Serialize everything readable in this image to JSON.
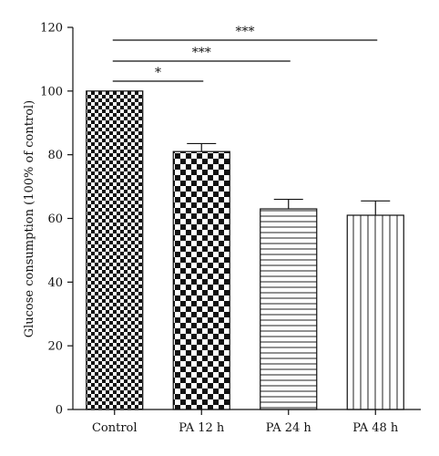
{
  "chart_data": {
    "type": "bar",
    "title": "",
    "xlabel": "",
    "ylabel": "Glucose consumption (100% of control)",
    "ylim": [
      0,
      120
    ],
    "yticks": [
      0,
      20,
      40,
      60,
      80,
      100,
      120
    ],
    "categories": [
      "Control",
      "PA 12 h",
      "PA 24 h",
      "PA 48 h"
    ],
    "values": [
      100,
      81,
      63,
      61
    ],
    "errors": [
      0,
      2.5,
      3,
      4.5
    ],
    "fill_patterns": [
      "fine-checker",
      "coarse-checker",
      "horizontal-lines",
      "vertical-lines"
    ],
    "significance": [
      {
        "from": "Control",
        "to": "PA 12 h",
        "label": "*"
      },
      {
        "from": "Control",
        "to": "PA 24 h",
        "label": "***"
      },
      {
        "from": "Control",
        "to": "PA 48 h",
        "label": "***"
      }
    ],
    "grid": false,
    "legend": "none"
  }
}
